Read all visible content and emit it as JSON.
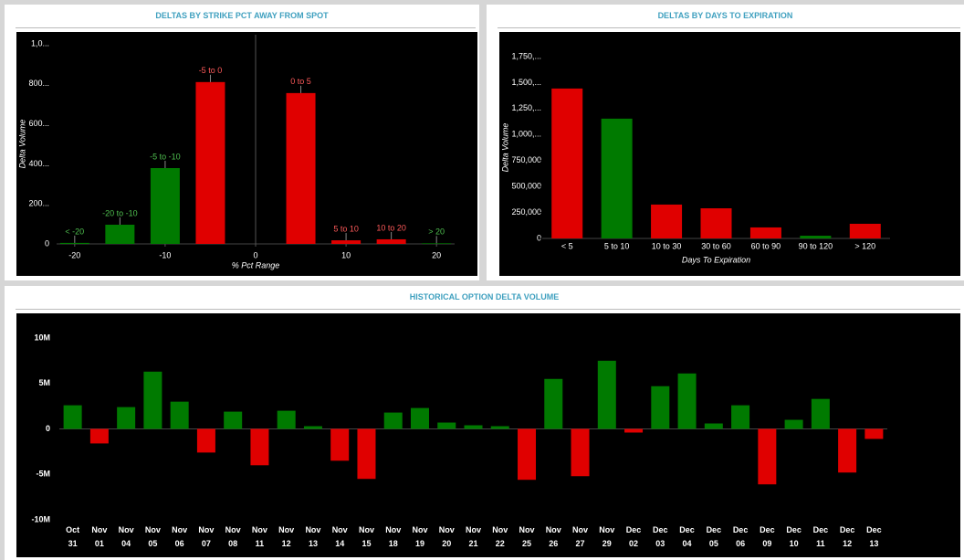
{
  "chart_data": [
    {
      "type": "bar",
      "title": "DELTAS BY STRIKE PCT AWAY FROM SPOT",
      "x_label": "% Pct Range",
      "y_label": "Delta Volume",
      "x": [
        -20,
        -15,
        -10,
        -5,
        5,
        10,
        15,
        20
      ],
      "labels": [
        "< -20",
        "-20 to -10",
        "-5 to -10",
        "-5 to 0",
        "0 to 5",
        "5 to 10",
        "10 to 20",
        "> 20"
      ],
      "values": [
        5,
        96,
        379,
        809,
        754,
        18,
        23,
        3
      ],
      "colors": [
        "#007a00",
        "#007a00",
        "#007a00",
        "#e00000",
        "#e00000",
        "#e00000",
        "#e00000",
        "#007a00"
      ],
      "xlim": [
        -22,
        22
      ],
      "xticks": [
        -20,
        -10,
        0,
        10,
        20
      ],
      "ylim": [
        0,
        1000
      ],
      "yticks": [
        0,
        {
          "value": 200,
          "label": "200..."
        },
        {
          "value": 400,
          "label": "400..."
        },
        {
          "value": 600,
          "label": "600..."
        },
        {
          "value": 800,
          "label": "800..."
        },
        {
          "value": 1000,
          "label": "1,0..."
        }
      ]
    },
    {
      "type": "bar",
      "title": "DELTAS BY DAYS TO EXPIRATION",
      "x_label": "Days To Expiration",
      "y_label": "Delta Volume",
      "categories": [
        "< 5",
        "5 to 10",
        "10 to 30",
        "30 to 60",
        "60 to 90",
        "90 to 120",
        "> 120"
      ],
      "values": [
        1443000,
        1153000,
        326000,
        290000,
        106000,
        26000,
        141000
      ],
      "colors": [
        "#e00000",
        "#007a00",
        "#e00000",
        "#e00000",
        "#e00000",
        "#007a00",
        "#e00000"
      ],
      "ylim": [
        0,
        1750000
      ],
      "yticks": [
        0,
        {
          "value": 250000,
          "label": "250,000"
        },
        {
          "value": 500000,
          "label": "500,000"
        },
        {
          "value": 750000,
          "label": "750,000"
        },
        {
          "value": 1000000,
          "label": "1,000,..."
        },
        {
          "value": 1250000,
          "label": "1,250,..."
        },
        {
          "value": 1500000,
          "label": "1,500,..."
        },
        {
          "value": 1750000,
          "label": "1,750,..."
        }
      ]
    },
    {
      "type": "bar",
      "title": "HISTORICAL OPTION DELTA VOLUME",
      "categories": [
        "Oct 31",
        "Nov 01",
        "Nov 04",
        "Nov 05",
        "Nov 06",
        "Nov 07",
        "Nov 08",
        "Nov 11",
        "Nov 12",
        "Nov 13",
        "Nov 14",
        "Nov 15",
        "Nov 18",
        "Nov 19",
        "Nov 20",
        "Nov 21",
        "Nov 22",
        "Nov 25",
        "Nov 26",
        "Nov 27",
        "Nov 29",
        "Dec 02",
        "Dec 03",
        "Dec 04",
        "Dec 05",
        "Dec 06",
        "Dec 09",
        "Dec 10",
        "Dec 11",
        "Dec 12",
        "Dec 13"
      ],
      "values": [
        2600000,
        -1600000,
        2400000,
        6300000,
        3000000,
        -2600000,
        1900000,
        -4000000,
        2000000,
        300000,
        -3500000,
        -5500000,
        1800000,
        2300000,
        700000,
        400000,
        300000,
        -5600000,
        5500000,
        -5200000,
        7500000,
        -400000,
        4700000,
        6100000,
        600000,
        2600000,
        -6100000,
        1000000,
        3300000,
        -4800000,
        -1100000
      ],
      "positive_color": "#007a00",
      "negative_color": "#e00000",
      "ylim": [
        -10000000,
        10000000
      ],
      "yticks": [
        {
          "value": 10000000,
          "label": "10M"
        },
        {
          "value": 5000000,
          "label": "5M"
        },
        0,
        {
          "value": -5000000,
          "label": "-5M"
        },
        {
          "value": -10000000,
          "label": "-10M"
        }
      ]
    }
  ]
}
